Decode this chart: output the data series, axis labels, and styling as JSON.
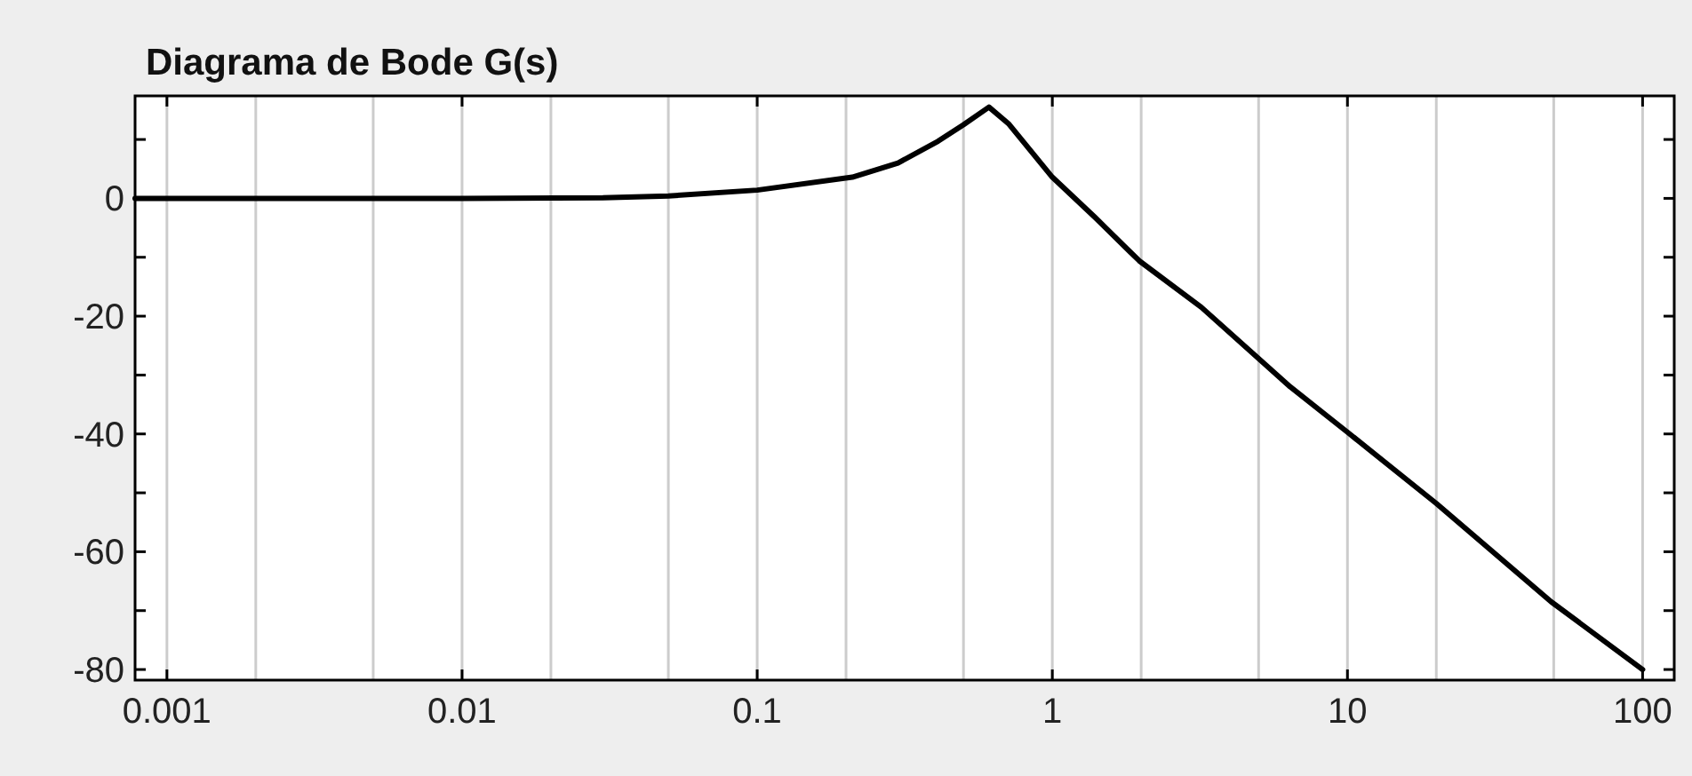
{
  "chart_data": {
    "type": "line",
    "title": "Diagrama de Bode G(s)",
    "log": "x",
    "grid": "x",
    "marker": "none",
    "line_style": "solid",
    "xlim": [
      0.00078,
      128
    ],
    "ylim": [
      -81.8,
      17.4
    ],
    "xticks": [
      0.001,
      {
        "value": 0.002,
        "label": null
      },
      {
        "value": 0.005,
        "label": null
      },
      0.01,
      {
        "value": 0.02,
        "label": null
      },
      {
        "value": 0.05,
        "label": null
      },
      0.1,
      {
        "value": 0.2,
        "label": null
      },
      {
        "value": 0.5,
        "label": null
      },
      1,
      {
        "value": 2,
        "label": null
      },
      {
        "value": 5,
        "label": null
      },
      10,
      {
        "value": 20,
        "label": null
      },
      {
        "value": 50,
        "label": null
      },
      100
    ],
    "yticks": [
      {
        "value": 10,
        "label": null
      },
      0,
      {
        "value": -10,
        "label": null
      },
      -20,
      {
        "value": -30,
        "label": null
      },
      -40,
      {
        "value": -50,
        "label": null
      },
      -60,
      {
        "value": -70,
        "label": null
      },
      -80
    ],
    "series": [
      {
        "color": "#000000",
        "x": [
          0.00078,
          0.001,
          0.01,
          0.03,
          0.05,
          0.1,
          0.21,
          0.3,
          0.41,
          0.5,
          0.61,
          0.71,
          1.0,
          1.4,
          1.97,
          3.2,
          6.4,
          10,
          20,
          49,
          100
        ],
        "values": [
          0,
          0,
          0,
          0.1,
          0.4,
          1.4,
          3.6,
          6,
          9.7,
          12.5,
          15.5,
          12.7,
          3.6,
          -3.3,
          -10.6,
          -18.5,
          -32,
          -39.7,
          -51.8,
          -68.5,
          -80
        ]
      }
    ]
  }
}
